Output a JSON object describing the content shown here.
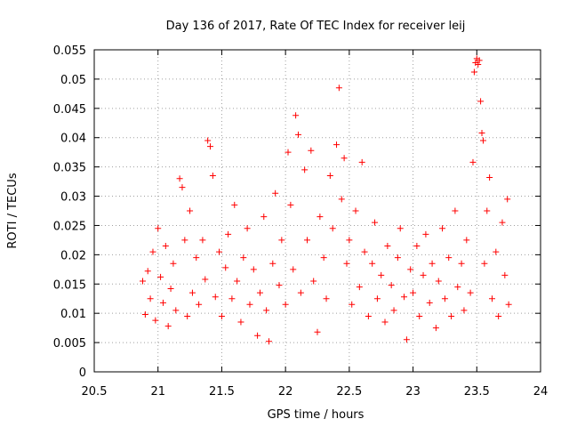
{
  "chart_data": {
    "type": "scatter",
    "title": "Day 136 of 2017, Rate Of TEC Index for receiver leij",
    "xlabel": "GPS time / hours",
    "ylabel": "ROTI / TECUs",
    "xlim": [
      20.5,
      24
    ],
    "ylim": [
      0,
      0.055
    ],
    "x_ticks": [
      20.5,
      21,
      21.5,
      22,
      22.5,
      23,
      23.5,
      24
    ],
    "x_tick_labels": [
      "20.5",
      "21",
      "21.5",
      "22",
      "22.5",
      "23",
      "23.5",
      "24"
    ],
    "y_ticks": [
      0,
      0.005,
      0.01,
      0.015,
      0.02,
      0.025,
      0.03,
      0.035,
      0.04,
      0.045,
      0.05,
      0.055
    ],
    "y_tick_labels": [
      "0",
      "0.005",
      "0.01",
      "0.015",
      "0.02",
      "0.025",
      "0.03",
      "0.035",
      "0.04",
      "0.045",
      "0.05",
      "0.055"
    ],
    "grid": true,
    "marker": "+",
    "color": "#ff0000",
    "x_range_of_data": [
      20.87,
      23.75
    ],
    "series": [
      {
        "name": "ROTI",
        "points": [
          [
            20.88,
            0.0155
          ],
          [
            20.9,
            0.0098
          ],
          [
            20.92,
            0.0172
          ],
          [
            20.94,
            0.0125
          ],
          [
            20.96,
            0.0205
          ],
          [
            20.98,
            0.0088
          ],
          [
            21.0,
            0.0245
          ],
          [
            21.02,
            0.0162
          ],
          [
            21.04,
            0.0118
          ],
          [
            21.06,
            0.0215
          ],
          [
            21.08,
            0.0078
          ],
          [
            21.1,
            0.0142
          ],
          [
            21.12,
            0.0185
          ],
          [
            21.14,
            0.0105
          ],
          [
            21.17,
            0.033
          ],
          [
            21.19,
            0.0315
          ],
          [
            21.21,
            0.0225
          ],
          [
            21.23,
            0.0095
          ],
          [
            21.25,
            0.0275
          ],
          [
            21.27,
            0.0135
          ],
          [
            21.3,
            0.0195
          ],
          [
            21.32,
            0.0115
          ],
          [
            21.35,
            0.0225
          ],
          [
            21.37,
            0.0158
          ],
          [
            21.39,
            0.0395
          ],
          [
            21.41,
            0.0385
          ],
          [
            21.43,
            0.0335
          ],
          [
            21.45,
            0.0128
          ],
          [
            21.48,
            0.0205
          ],
          [
            21.5,
            0.0095
          ],
          [
            21.53,
            0.0178
          ],
          [
            21.55,
            0.0235
          ],
          [
            21.58,
            0.0125
          ],
          [
            21.6,
            0.0285
          ],
          [
            21.62,
            0.0155
          ],
          [
            21.65,
            0.0085
          ],
          [
            21.67,
            0.0195
          ],
          [
            21.7,
            0.0245
          ],
          [
            21.72,
            0.0115
          ],
          [
            21.75,
            0.0175
          ],
          [
            21.78,
            0.0062
          ],
          [
            21.8,
            0.0135
          ],
          [
            21.83,
            0.0265
          ],
          [
            21.85,
            0.0105
          ],
          [
            21.87,
            0.0052
          ],
          [
            21.9,
            0.0185
          ],
          [
            21.92,
            0.0305
          ],
          [
            21.95,
            0.0148
          ],
          [
            21.97,
            0.0225
          ],
          [
            22.0,
            0.0115
          ],
          [
            22.02,
            0.0375
          ],
          [
            22.04,
            0.0285
          ],
          [
            22.06,
            0.0175
          ],
          [
            22.08,
            0.0438
          ],
          [
            22.1,
            0.0405
          ],
          [
            22.12,
            0.0135
          ],
          [
            22.15,
            0.0345
          ],
          [
            22.17,
            0.0225
          ],
          [
            22.2,
            0.0378
          ],
          [
            22.22,
            0.0155
          ],
          [
            22.25,
            0.0068
          ],
          [
            22.27,
            0.0265
          ],
          [
            22.3,
            0.0195
          ],
          [
            22.32,
            0.0125
          ],
          [
            22.35,
            0.0335
          ],
          [
            22.37,
            0.0245
          ],
          [
            22.4,
            0.0388
          ],
          [
            22.42,
            0.0485
          ],
          [
            22.44,
            0.0295
          ],
          [
            22.46,
            0.0365
          ],
          [
            22.48,
            0.0185
          ],
          [
            22.5,
            0.0225
          ],
          [
            22.52,
            0.0115
          ],
          [
            22.55,
            0.0275
          ],
          [
            22.58,
            0.0145
          ],
          [
            22.6,
            0.0358
          ],
          [
            22.62,
            0.0205
          ],
          [
            22.65,
            0.0095
          ],
          [
            22.68,
            0.0185
          ],
          [
            22.7,
            0.0255
          ],
          [
            22.72,
            0.0125
          ],
          [
            22.75,
            0.0165
          ],
          [
            22.78,
            0.0085
          ],
          [
            22.8,
            0.0215
          ],
          [
            22.83,
            0.0148
          ],
          [
            22.85,
            0.0105
          ],
          [
            22.88,
            0.0195
          ],
          [
            22.9,
            0.0245
          ],
          [
            22.93,
            0.0128
          ],
          [
            22.95,
            0.0055
          ],
          [
            22.98,
            0.0175
          ],
          [
            23.0,
            0.0135
          ],
          [
            23.03,
            0.0215
          ],
          [
            23.05,
            0.0095
          ],
          [
            23.08,
            0.0165
          ],
          [
            23.1,
            0.0235
          ],
          [
            23.13,
            0.0118
          ],
          [
            23.15,
            0.0185
          ],
          [
            23.18,
            0.0075
          ],
          [
            23.2,
            0.0155
          ],
          [
            23.23,
            0.0245
          ],
          [
            23.25,
            0.0125
          ],
          [
            23.28,
            0.0195
          ],
          [
            23.3,
            0.0095
          ],
          [
            23.33,
            0.0275
          ],
          [
            23.35,
            0.0145
          ],
          [
            23.38,
            0.0185
          ],
          [
            23.4,
            0.0105
          ],
          [
            23.42,
            0.0225
          ],
          [
            23.45,
            0.0135
          ],
          [
            23.47,
            0.0358
          ],
          [
            23.48,
            0.0512
          ],
          [
            23.49,
            0.0528
          ],
          [
            23.5,
            0.0535
          ],
          [
            23.51,
            0.0525
          ],
          [
            23.52,
            0.0532
          ],
          [
            23.53,
            0.0462
          ],
          [
            23.54,
            0.0408
          ],
          [
            23.55,
            0.0395
          ],
          [
            23.56,
            0.0185
          ],
          [
            23.58,
            0.0275
          ],
          [
            23.6,
            0.0332
          ],
          [
            23.62,
            0.0125
          ],
          [
            23.65,
            0.0205
          ],
          [
            23.67,
            0.0095
          ],
          [
            23.7,
            0.0255
          ],
          [
            23.72,
            0.0165
          ],
          [
            23.74,
            0.0295
          ],
          [
            23.75,
            0.0115
          ]
        ]
      }
    ]
  }
}
